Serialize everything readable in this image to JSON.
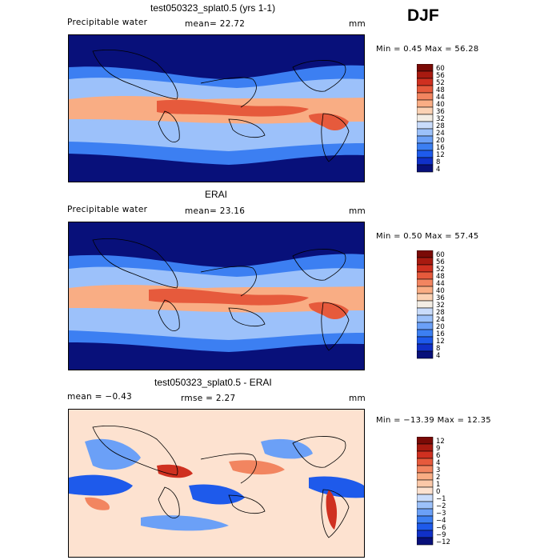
{
  "season": "DJF",
  "colors": {
    "precip": [
      "#08107a",
      "#1030c8",
      "#1e5aeb",
      "#3c7ff2",
      "#6ba0f7",
      "#9cc1fa",
      "#c9dcfb",
      "#f3ede4",
      "#fbd2b4",
      "#f9ad84",
      "#f28560",
      "#e65a3c",
      "#cf3020",
      "#a81a10",
      "#7a0a06"
    ],
    "diff": [
      "#08107a",
      "#1030c8",
      "#1e5aeb",
      "#3c7ff2",
      "#6ba0f7",
      "#9cc1fa",
      "#c9dcfb",
      "#fde2d0",
      "#fbc8a8",
      "#f9ad84",
      "#f28560",
      "#e65a3c",
      "#cf3020",
      "#a81a10",
      "#7a0a06"
    ]
  },
  "panels": [
    {
      "title": "test050323_splat0.5 (yrs 1-1)",
      "left_label": "Precipitable water",
      "mean_text": "mean=  22.72",
      "units": "mm",
      "stats": "Min =   0.45 Max =  56.28",
      "cbar_labels": [
        "60",
        "56",
        "52",
        "48",
        "44",
        "40",
        "36",
        "32",
        "28",
        "24",
        "20",
        "16",
        "12",
        "8",
        "4"
      ]
    },
    {
      "title": "ERAI",
      "left_label": "Precipitable water",
      "mean_text": "mean=  23.16",
      "units": "mm",
      "stats": "Min =   0.50 Max =  57.45",
      "cbar_labels": [
        "60",
        "56",
        "52",
        "48",
        "44",
        "40",
        "36",
        "32",
        "28",
        "24",
        "20",
        "16",
        "12",
        "8",
        "4"
      ]
    },
    {
      "title": "test050323_splat0.5 - ERAI",
      "left_label": "mean =  −0.43",
      "mean_text": "rmse =   2.27",
      "units": "mm",
      "stats": "Min = −13.39 Max =  12.35",
      "cbar_labels": [
        "12",
        "9",
        "6",
        "4",
        "3",
        "2",
        "1",
        "0",
        "−1",
        "−2",
        "−3",
        "−4",
        "−6",
        "−9",
        "−12"
      ]
    }
  ],
  "chart_data": [
    {
      "type": "heatmap",
      "title": "test050323_splat0.5 (yrs 1-1)",
      "variable": "Precipitable water",
      "units": "mm",
      "mean": 22.72,
      "min": 0.45,
      "max": 56.28,
      "color_levels": [
        4,
        8,
        12,
        16,
        20,
        24,
        28,
        32,
        36,
        40,
        44,
        48,
        52,
        56,
        60
      ]
    },
    {
      "type": "heatmap",
      "title": "ERAI",
      "variable": "Precipitable water",
      "units": "mm",
      "mean": 23.16,
      "min": 0.5,
      "max": 57.45,
      "color_levels": [
        4,
        8,
        12,
        16,
        20,
        24,
        28,
        32,
        36,
        40,
        44,
        48,
        52,
        56,
        60
      ]
    },
    {
      "type": "heatmap",
      "title": "test050323_splat0.5 - ERAI",
      "units": "mm",
      "mean": -0.43,
      "rmse": 2.27,
      "min": -13.39,
      "max": 12.35,
      "color_levels": [
        -12,
        -9,
        -6,
        -4,
        -3,
        -2,
        -1,
        0,
        1,
        2,
        3,
        4,
        6,
        9,
        12
      ]
    }
  ]
}
